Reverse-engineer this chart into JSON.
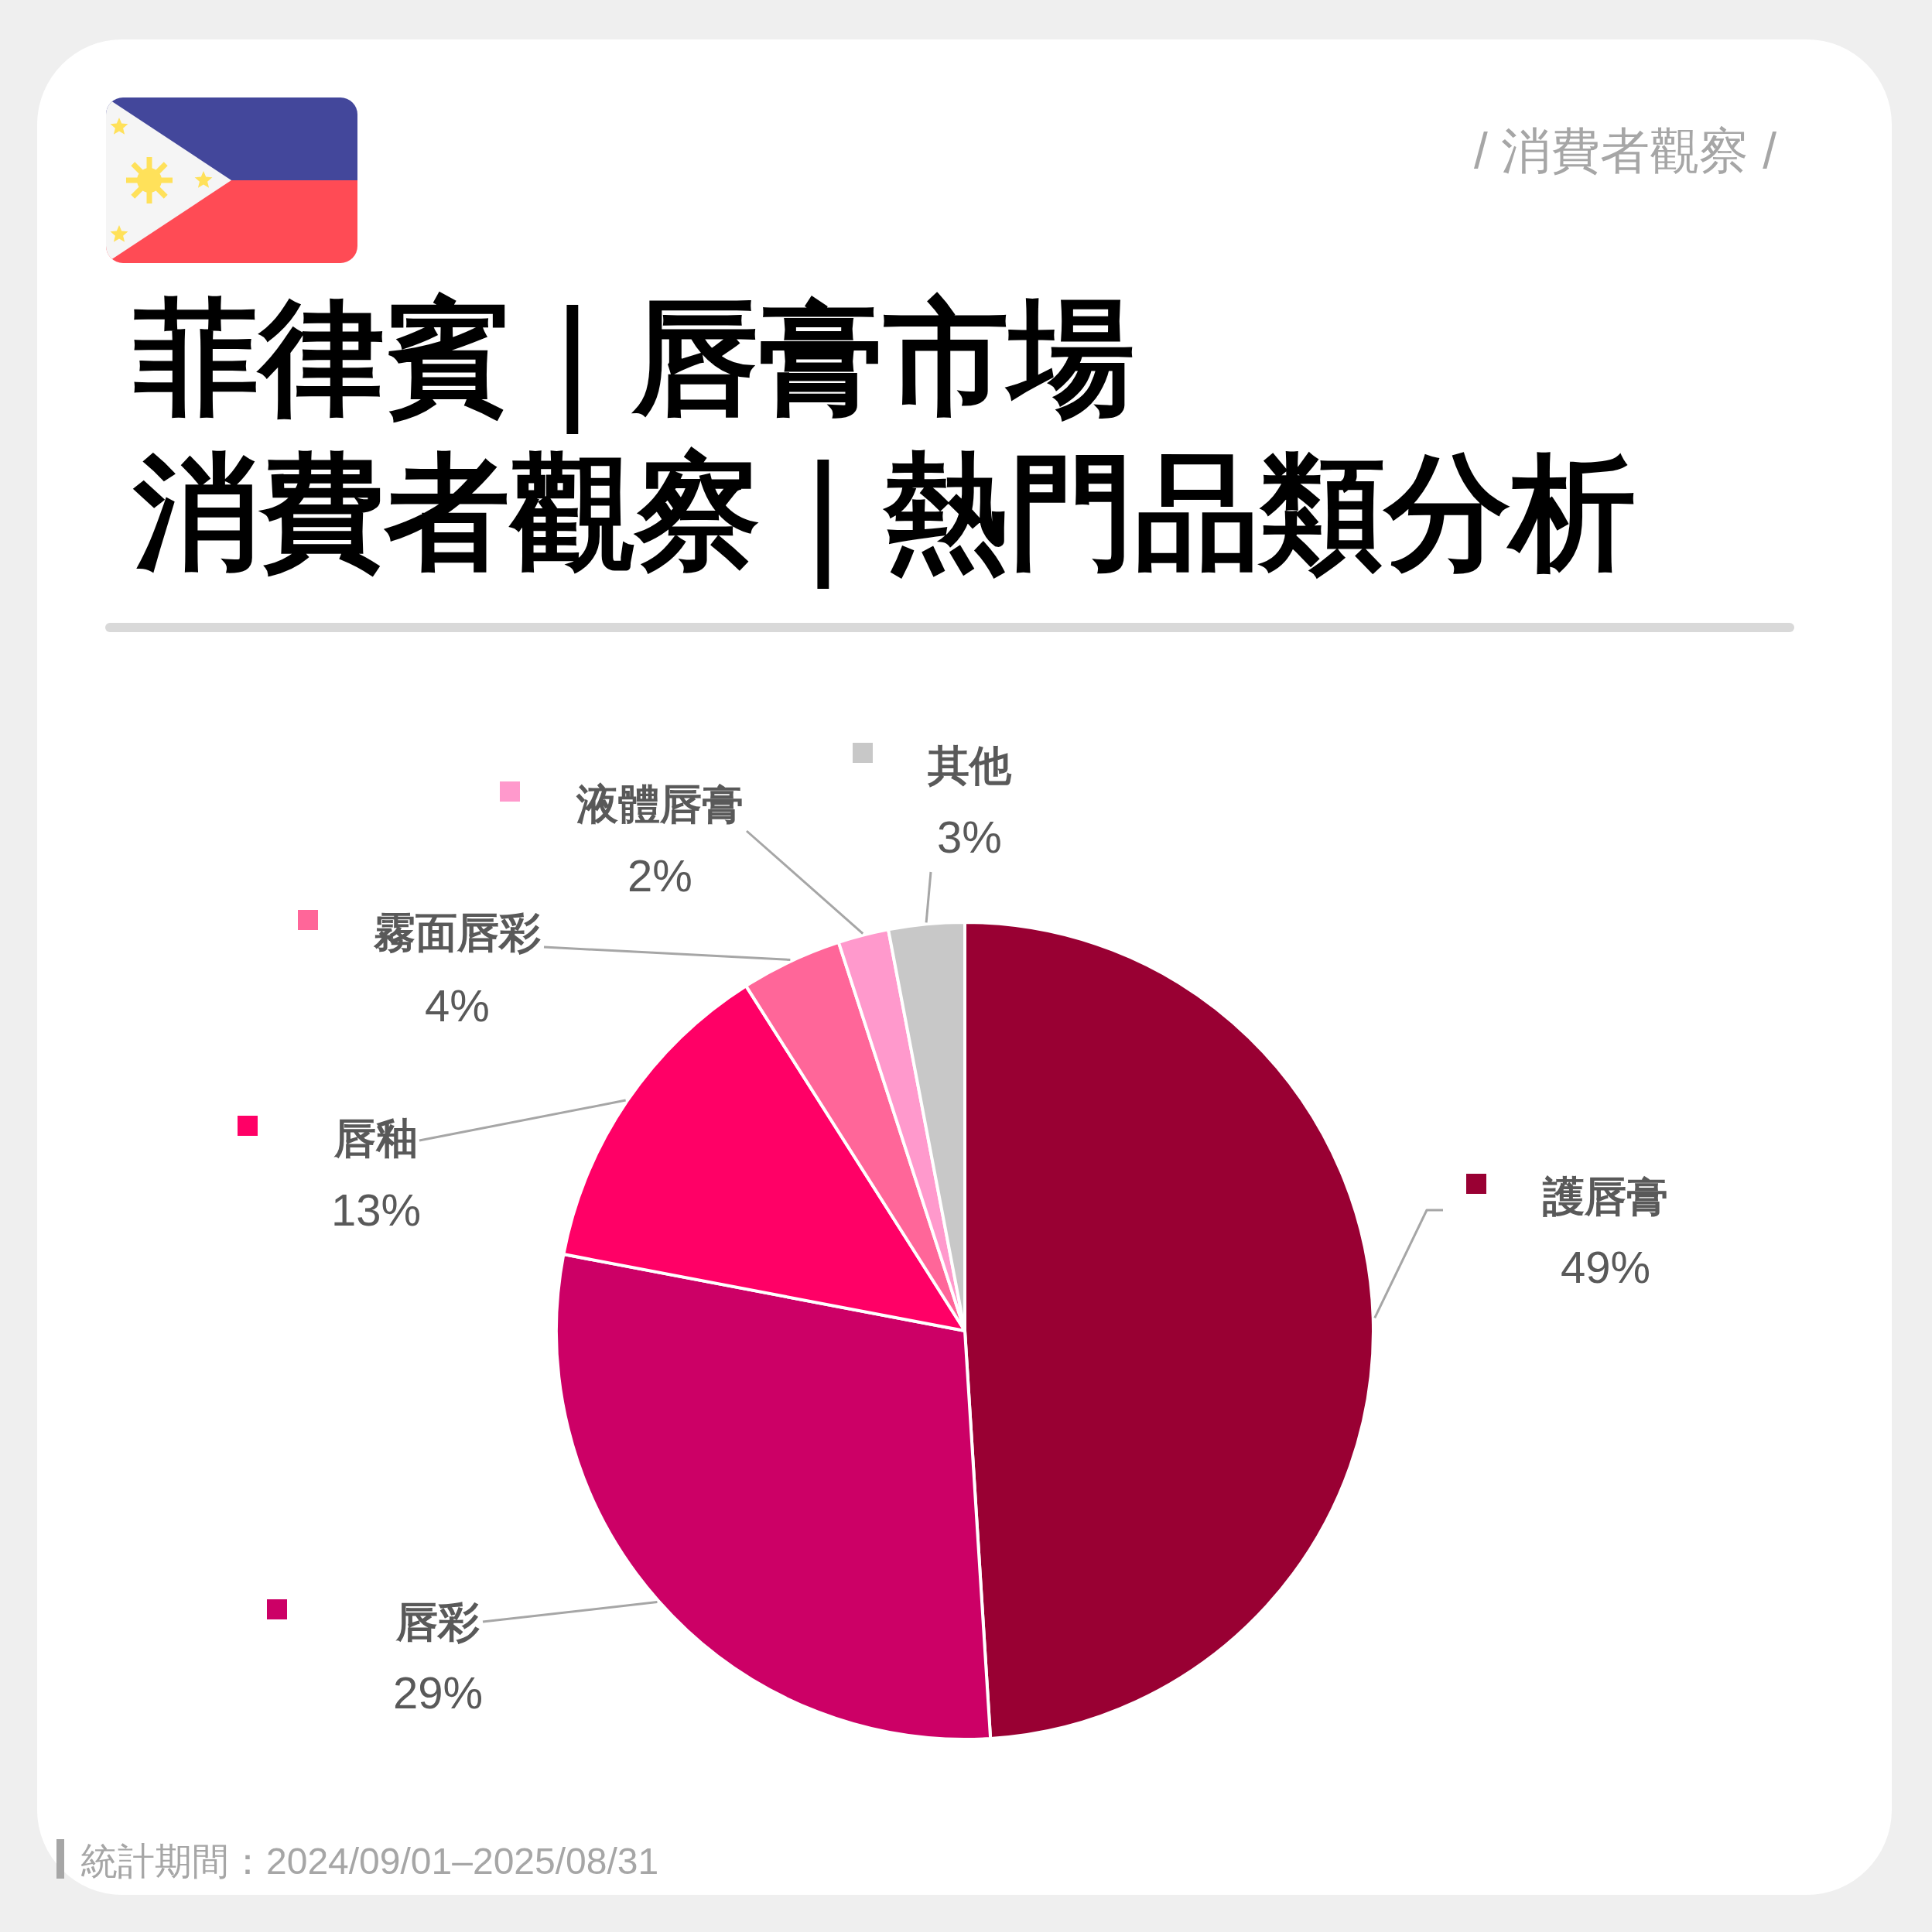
{
  "chart_data": {
    "type": "pie",
    "title": "菲律賓｜唇膏市場",
    "subtitle": "消費者觀察｜熱門品類分析",
    "categories": [
      "護唇膏",
      "唇彩",
      "唇釉",
      "霧面唇彩",
      "液體唇膏",
      "其他"
    ],
    "values": [
      49,
      29,
      13,
      4,
      2,
      3
    ],
    "colors": [
      "#990033",
      "#cc0066",
      "#ff0066",
      "#ff6699",
      "#ff99cc",
      "#c8c8c8"
    ],
    "value_labels": [
      "49%",
      "29%",
      "13%",
      "4%",
      "2%",
      "3%"
    ],
    "legend": "left",
    "annotations": [
      "/ 消費者觀察 /",
      "統計期間：2024/09/01–2025/08/31"
    ]
  }
}
